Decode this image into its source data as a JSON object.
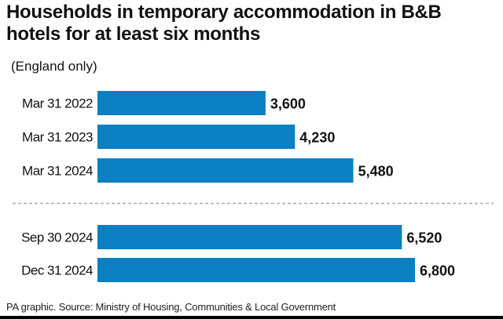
{
  "chart_data": {
    "type": "bar",
    "orientation": "horizontal",
    "title": "Households in temporary accommodation in B&B hotels for at least six months",
    "subtitle": "(England only)",
    "categories": [
      "Mar 31 2022",
      "Mar 31 2023",
      "Mar 31 2024",
      "Sep 30 2024",
      "Dec 31 2024"
    ],
    "values": [
      3600,
      4230,
      5480,
      6520,
      6800
    ],
    "data_labels": [
      "3,600",
      "4,230",
      "5,480",
      "6,520",
      "6,800"
    ],
    "groups_separated_after_index": 2,
    "xlim": [
      0,
      6800
    ],
    "grid": false,
    "bar_color": "#0a7fc2",
    "source": "PA graphic. Source: Ministry of Housing, Communities & Local Government"
  }
}
